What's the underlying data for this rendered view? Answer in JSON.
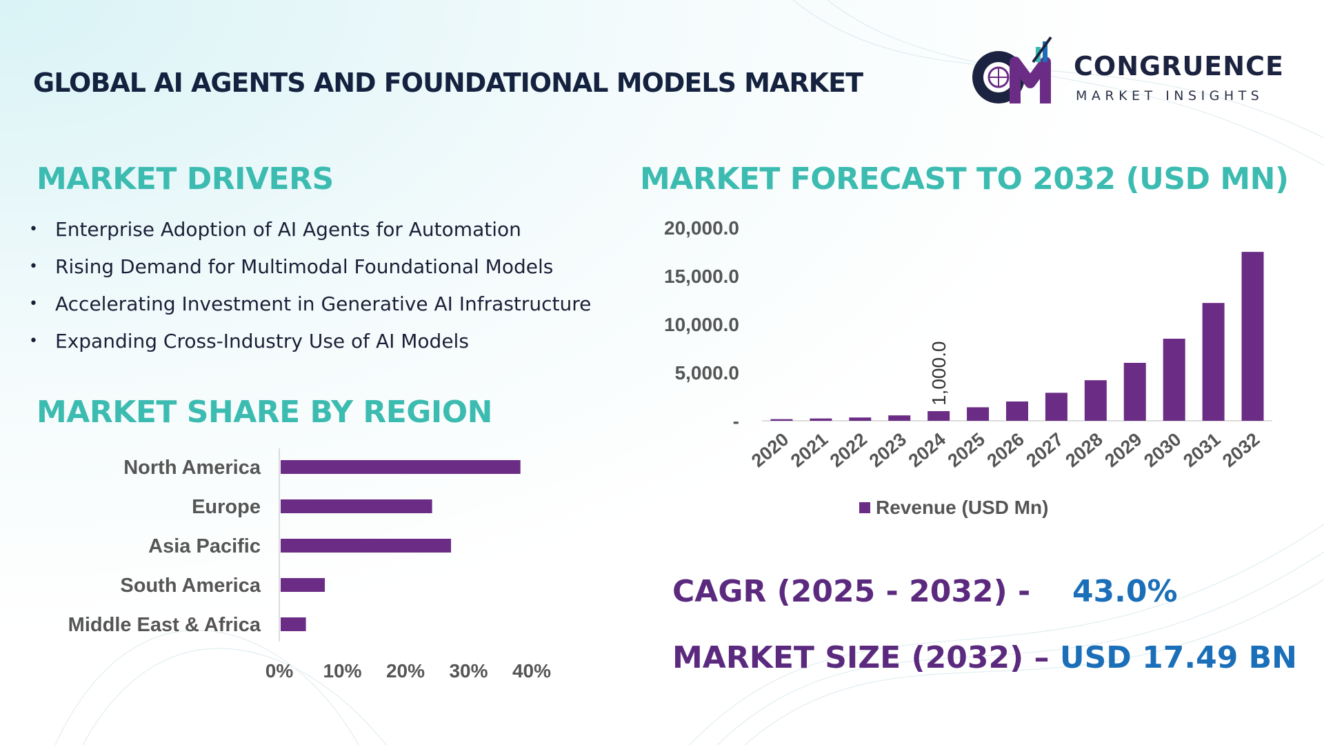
{
  "header": {
    "title": "GLOBAL AI AGENTS AND FOUNDATIONAL MODELS MARKET",
    "logo_name": "CONGRUENCE",
    "logo_sub": "MARKET INSIGHTS",
    "logo_monogram": "CM"
  },
  "colors": {
    "bar": "#6a2c84",
    "section_title": "#3cbbb0",
    "kpi_label": "#5b2a7e",
    "kpi_value": "#1a6fb8",
    "title": "#14213f"
  },
  "drivers": {
    "title": "MARKET DRIVERS",
    "items": [
      "Enterprise Adoption of AI Agents for Automation",
      "Rising Demand for Multimodal Foundational Models",
      "Accelerating Investment in Generative AI Infrastructure",
      "Expanding Cross-Industry Use of AI Models"
    ]
  },
  "region": {
    "title": "MARKET SHARE BY REGION"
  },
  "forecast": {
    "title": "MARKET FORECAST TO 2032 (USD MN)"
  },
  "kpis": {
    "cagr_label": "CAGR (2025 - 2032) -",
    "cagr_value": "43.0%",
    "size_label": "MARKET SIZE (2032) –",
    "size_value": "USD 17.49 BN"
  },
  "chart_data": [
    {
      "type": "bar",
      "orientation": "vertical",
      "title": "MARKET FORECAST TO 2032 (USD MN)",
      "categories": [
        "2020",
        "2021",
        "2022",
        "2023",
        "2024",
        "2025",
        "2026",
        "2027",
        "2028",
        "2029",
        "2030",
        "2031",
        "2032"
      ],
      "series": [
        {
          "name": "Revenue (USD Mn)",
          "values": [
            170,
            240,
            340,
            560,
            1000,
            1400,
            2000,
            2900,
            4200,
            6000,
            8500,
            12200,
            17490
          ]
        }
      ],
      "data_labels": [
        {
          "category": "2024",
          "text": "1,000.0"
        }
      ],
      "ylim": [
        0,
        20000
      ],
      "yticks": [
        "-",
        "5,000.0",
        "10,000.0",
        "15,000.0",
        "20,000.0"
      ],
      "legend": "bottom",
      "grid": false
    },
    {
      "type": "bar",
      "orientation": "horizontal",
      "title": "MARKET SHARE BY REGION",
      "categories": [
        "North America",
        "Europe",
        "Asia Pacific",
        "South America",
        "Middle East & Africa"
      ],
      "values": [
        0.38,
        0.24,
        0.27,
        0.07,
        0.04
      ],
      "xlim": [
        0,
        0.4
      ],
      "xticks": [
        "0%",
        "10%",
        "20%",
        "30%",
        "40%"
      ],
      "grid": false
    }
  ]
}
